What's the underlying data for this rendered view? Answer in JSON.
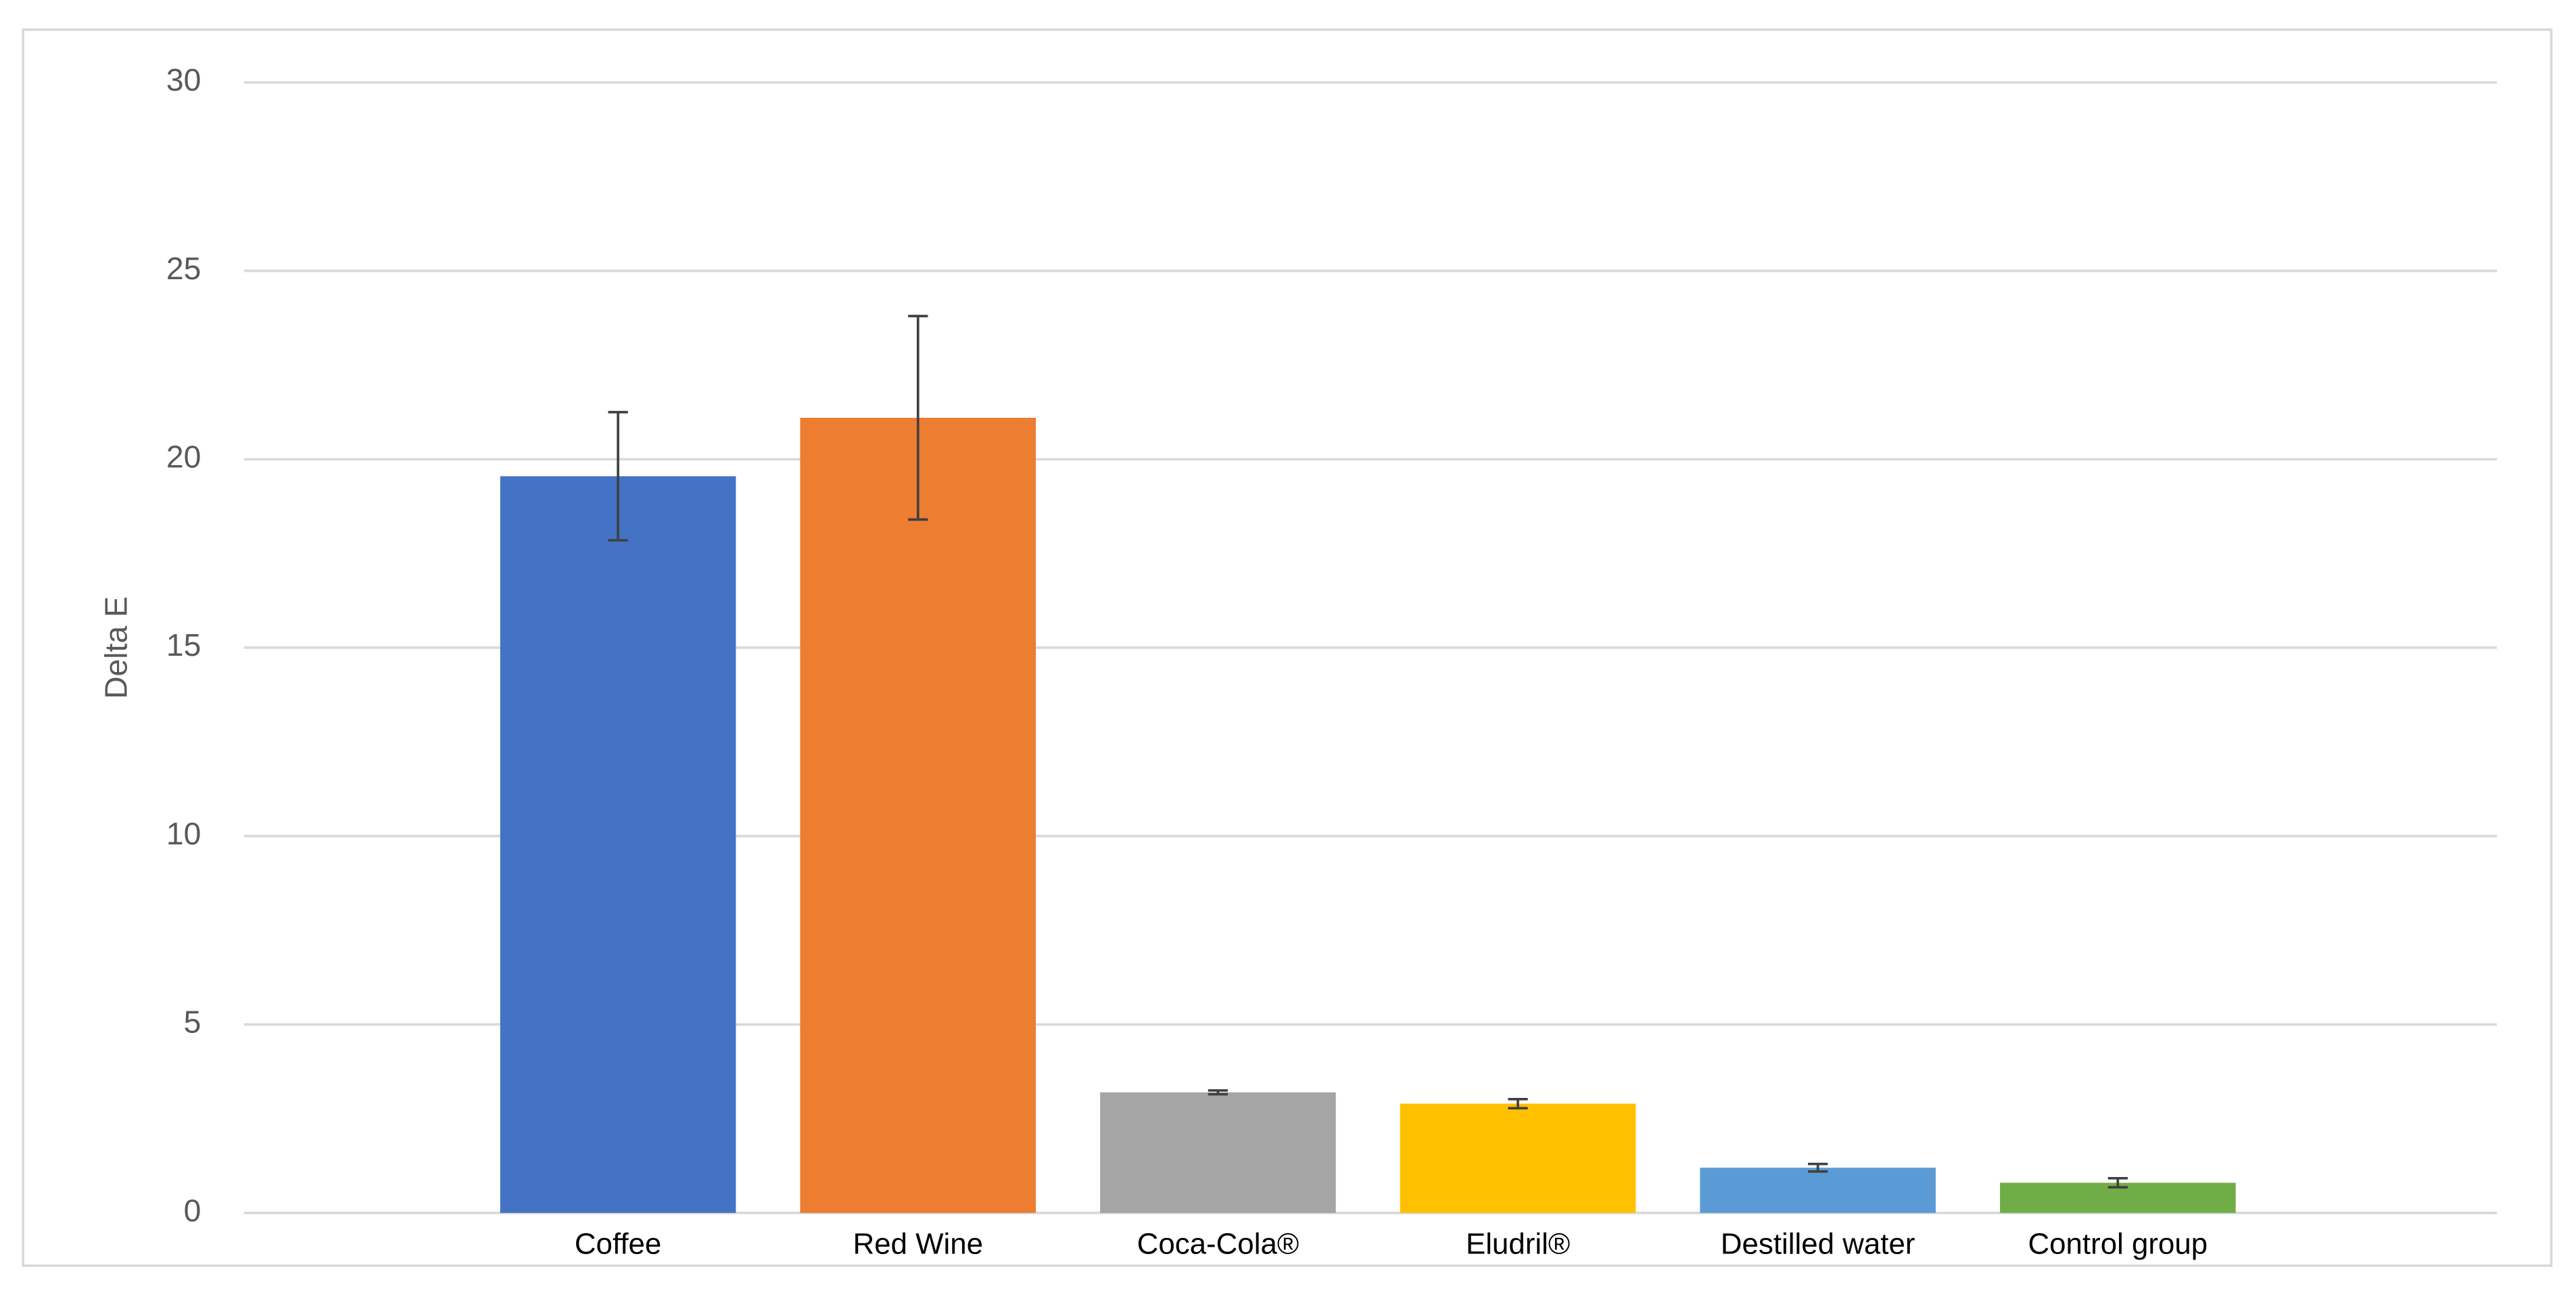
{
  "chart_data": {
    "type": "bar",
    "y_label": "Delta E",
    "categories": [
      "Coffee",
      "Red Wine",
      "Coca-Cola®",
      "Eludril®",
      "Destilled water",
      "Control group"
    ],
    "values": [
      19.55,
      21.1,
      3.2,
      2.9,
      1.2,
      0.8
    ],
    "errors": [
      1.7,
      2.7,
      0.05,
      0.12,
      0.1,
      0.12
    ],
    "colors": [
      "#4472c4",
      "#ed7d31",
      "#a5a5a5",
      "#ffc000",
      "#5b9bd5",
      "#70ad47"
    ],
    "ylim": [
      0,
      30
    ],
    "yticks": [
      0,
      5,
      10,
      15,
      20,
      25,
      30
    ],
    "grid": true
  }
}
